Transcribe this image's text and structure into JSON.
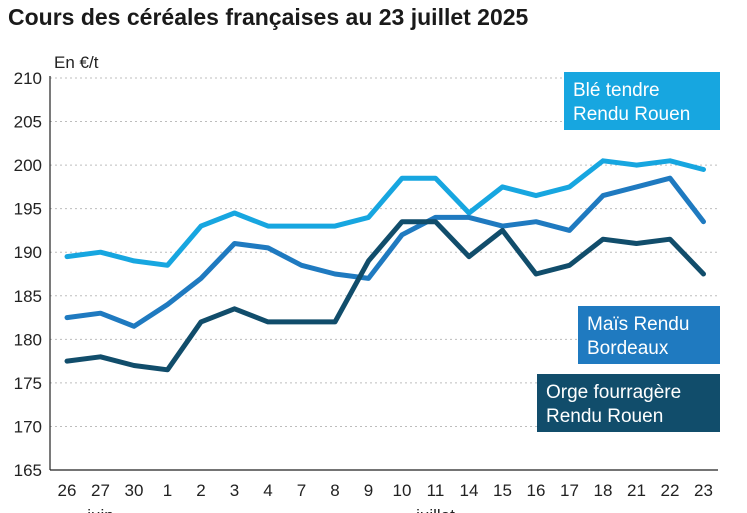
{
  "title": "Cours des céréales françaises au 23 juillet 2025",
  "chart_data": {
    "type": "line",
    "title": "Cours des céréales françaises au 23 juillet 2025",
    "ylabel": "En €/t",
    "xlabel": "",
    "ylim": [
      165,
      210
    ],
    "yticks": [
      "210",
      "205",
      "200",
      "195",
      "190",
      "185",
      "180",
      "175",
      "170",
      "165"
    ],
    "ytick_values": [
      210,
      205,
      200,
      195,
      190,
      185,
      180,
      175,
      170,
      165
    ],
    "categories": [
      "26",
      "27",
      "30",
      "1",
      "2",
      "3",
      "4",
      "7",
      "8",
      "9",
      "10",
      "11",
      "14",
      "15",
      "16",
      "17",
      "18",
      "21",
      "22",
      "23"
    ],
    "month_labels": [
      {
        "label": "juin",
        "index": 1
      },
      {
        "label": "juillet",
        "index": 11
      }
    ],
    "grid": true,
    "series": [
      {
        "name": "Blé tendre Rendu Rouen",
        "label_lines": [
          "Blé tendre",
          "Rendu Rouen"
        ],
        "color": "#17a6e0",
        "values": [
          189.5,
          190,
          189,
          188.5,
          193,
          194.5,
          193,
          193,
          193,
          194,
          198.5,
          198.5,
          194.5,
          197.5,
          196.5,
          197.5,
          200.5,
          200,
          200.5,
          199.5
        ]
      },
      {
        "name": "Maïs Rendu Bordeaux",
        "label_lines": [
          "Maïs Rendu",
          "Bordeaux"
        ],
        "color": "#1f7ac0",
        "values": [
          182.5,
          183,
          181.5,
          184,
          187,
          191,
          190.5,
          188.5,
          187.5,
          187,
          192,
          194,
          194,
          193,
          193.5,
          192.5,
          196.5,
          197.5,
          198.5,
          193.5
        ]
      },
      {
        "name": "Orge fourragère Rendu Rouen",
        "label_lines": [
          "Orge fourragère",
          "Rendu Rouen"
        ],
        "color": "#114d6b",
        "values": [
          177.5,
          178,
          177,
          176.5,
          182,
          183.5,
          182,
          182,
          182,
          189,
          193.5,
          193.5,
          189.5,
          192.5,
          187.5,
          188.5,
          191.5,
          191,
          191.5,
          187.5
        ]
      }
    ]
  }
}
